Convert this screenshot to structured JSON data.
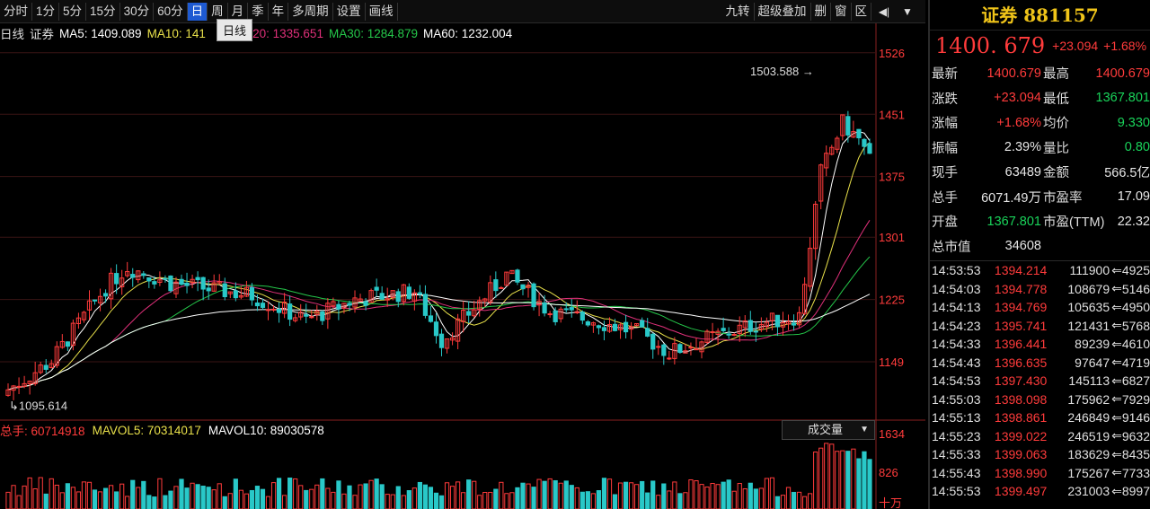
{
  "toolbar": {
    "periods": [
      "分时",
      "1分",
      "5分",
      "15分",
      "30分",
      "60分",
      "日",
      "周",
      "月",
      "季",
      "年",
      "多周期",
      "设置",
      "画线"
    ],
    "active_index": 6,
    "right_buttons": [
      "九转",
      "超级叠加",
      "删",
      "窗",
      "区"
    ]
  },
  "tooltip": "日线",
  "ma_legend": {
    "period": "日线",
    "name": "证券",
    "ma5": "MA5: 1409.089",
    "ma10": "MA10: 141",
    "ma20": "MA20: 1335.651",
    "ma30": "MA30: 1284.879",
    "ma60": "MA60: 1232.004"
  },
  "colors": {
    "up": "#ff3b3b",
    "down": "#29c8c8",
    "ma5": "#ffffff",
    "ma10": "#e8e04a",
    "ma20": "#e0307a",
    "ma30": "#25c74a",
    "ma60": "#ffffff"
  },
  "chart_data": {
    "type": "candlestick",
    "y_ticks": [
      1526,
      1451,
      1375,
      1301,
      1225,
      1149
    ],
    "ylim": [
      1080,
      1540
    ],
    "high_label": "1503.588",
    "low_label": "1095.614",
    "volume": {
      "y_ticks": [
        "1634",
        "826",
        "十万"
      ],
      "total": "总手: 60714918",
      "mavol5": "MAVOL5: 70314017",
      "mavol10": "MAVOL10: 89030578",
      "selector": "成交量"
    }
  },
  "panel": {
    "title": "证券 881157",
    "price": "1400. 679",
    "change": "+23.094",
    "change_pct": "+1.68%",
    "quotes": [
      {
        "l1": "最新",
        "v1": "1400.679",
        "c1": "red",
        "l2": "最高",
        "v2": "1400.679",
        "c2": "red"
      },
      {
        "l1": "涨跌",
        "v1": "+23.094",
        "c1": "red",
        "l2": "最低",
        "v2": "1367.801",
        "c2": "green"
      },
      {
        "l1": "涨幅",
        "v1": "+1.68%",
        "c1": "red",
        "l2": "均价",
        "v2": "9.330",
        "c2": "green"
      },
      {
        "l1": "振幅",
        "v1": "2.39%",
        "c1": "white",
        "l2": "量比",
        "v2": "0.80",
        "c2": "green"
      },
      {
        "l1": "现手",
        "v1": "63489",
        "c1": "white",
        "l2": "金额",
        "v2": "566.5亿",
        "c2": "white"
      },
      {
        "l1": "总手",
        "v1": "6071.49万",
        "c1": "white",
        "l2": "市盈率",
        "v2": "17.09",
        "c2": "white"
      },
      {
        "l1": "开盘",
        "v1": "1367.801",
        "c1": "green",
        "l2": "市盈(TTM)",
        "v2": "22.32",
        "c2": "white"
      },
      {
        "l1": "总市值",
        "v1": "34608",
        "c1": "white",
        "l2": "",
        "v2": "",
        "c2": "white"
      }
    ],
    "ticks": [
      {
        "time": "14:53:53",
        "price": "1394.214",
        "vol": "111900",
        "num": "4925"
      },
      {
        "time": "14:54:03",
        "price": "1394.778",
        "vol": "108679",
        "num": "5146"
      },
      {
        "time": "14:54:13",
        "price": "1394.769",
        "vol": "105635",
        "num": "4950"
      },
      {
        "time": "14:54:23",
        "price": "1395.741",
        "vol": "121431",
        "num": "5768"
      },
      {
        "time": "14:54:33",
        "price": "1396.441",
        "vol": "89239",
        "num": "4610"
      },
      {
        "time": "14:54:43",
        "price": "1396.635",
        "vol": "97647",
        "num": "4719"
      },
      {
        "time": "14:54:53",
        "price": "1397.430",
        "vol": "145113",
        "num": "6827"
      },
      {
        "time": "14:55:03",
        "price": "1398.098",
        "vol": "175962",
        "num": "7929"
      },
      {
        "time": "14:55:13",
        "price": "1398.861",
        "vol": "246849",
        "num": "9146"
      },
      {
        "time": "14:55:23",
        "price": "1399.022",
        "vol": "246519",
        "num": "9632"
      },
      {
        "time": "14:55:33",
        "price": "1399.063",
        "vol": "183629",
        "num": "8435"
      },
      {
        "time": "14:55:43",
        "price": "1398.990",
        "vol": "175267",
        "num": "7733"
      },
      {
        "time": "14:55:53",
        "price": "1399.497",
        "vol": "231003",
        "num": "8997"
      }
    ]
  }
}
